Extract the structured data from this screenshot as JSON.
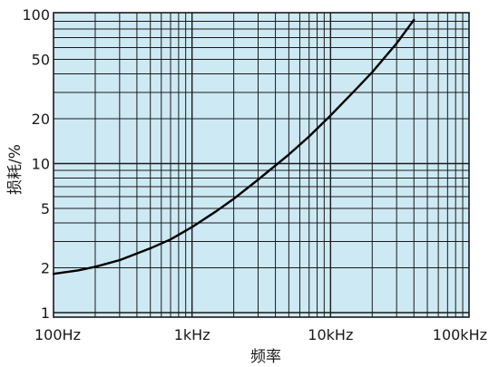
{
  "chart_data": {
    "type": "line",
    "xlabel": "频率",
    "ylabel": "损耗/%",
    "x_scale": "log",
    "y_scale": "log",
    "xlim": [
      100,
      100000
    ],
    "ylim": [
      0.9,
      100
    ],
    "grid": true,
    "x_ticks": [
      {
        "value": 100,
        "label": "100Hz"
      },
      {
        "value": 1000,
        "label": "1kHz"
      },
      {
        "value": 10000,
        "label": "10kHz"
      },
      {
        "value": 100000,
        "label": "100kHz"
      }
    ],
    "y_ticks": [
      {
        "value": 1,
        "label": "1"
      },
      {
        "value": 2,
        "label": "2"
      },
      {
        "value": 5,
        "label": "5"
      },
      {
        "value": 10,
        "label": "10"
      },
      {
        "value": 20,
        "label": "20"
      },
      {
        "value": 50,
        "label": "50"
      },
      {
        "value": 100,
        "label": "100"
      }
    ],
    "series": [
      {
        "x": [
          100,
          150,
          200,
          300,
          500,
          700,
          1000,
          1500,
          2000,
          3000,
          5000,
          7000,
          10000,
          15000,
          20000,
          30000,
          40000
        ],
        "y": [
          1.82,
          1.92,
          2.03,
          2.25,
          2.7,
          3.1,
          3.75,
          4.8,
          5.8,
          7.8,
          11.5,
          15.2,
          21,
          31,
          41,
          64,
          92
        ]
      }
    ],
    "colors": {
      "plot_background": "#cde9f4",
      "grid": "#1a1a1a",
      "line": "#000000"
    }
  }
}
